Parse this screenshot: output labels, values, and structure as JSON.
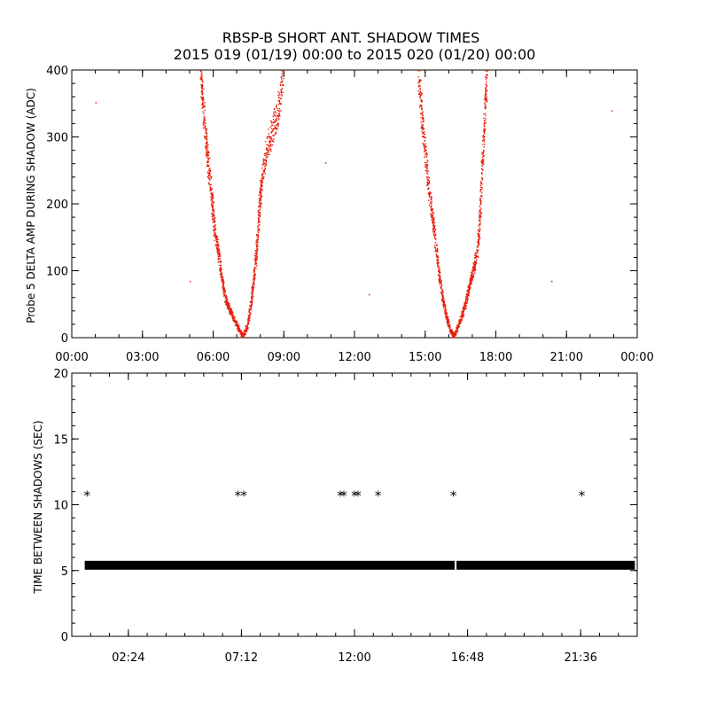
{
  "title_line1": "RBSP-B SHORT ANT. SHADOW TIMES",
  "title_line2": "2015 019 (01/19) 00:00 to 2015 020 (01/20) 00:00",
  "colors": {
    "top_points": "#e8200e",
    "bottom_points": "#000000",
    "axes": "#000000"
  },
  "chart_data": [
    {
      "type": "scatter",
      "title": "RBSP-B SHORT ANT. SHADOW TIMES",
      "ylabel": "Probe 5 DELTA AMP DURING SHADOW (ADC)",
      "xlabel": "",
      "xlim_hours": [
        0,
        24
      ],
      "ylim": [
        0,
        400
      ],
      "x_ticks": [
        "00:00",
        "03:00",
        "06:00",
        "09:00",
        "12:00",
        "15:00",
        "18:00",
        "21:00",
        "00:00"
      ],
      "y_ticks": [
        0,
        100,
        200,
        300,
        400
      ],
      "series": [
        {
          "color": "#e8200e",
          "note": "amplitude curve shape (hour, ADC)",
          "curve": [
            [
              5.45,
              400
            ],
            [
              5.55,
              350
            ],
            [
              5.7,
              290
            ],
            [
              5.8,
              250
            ],
            [
              5.95,
              200
            ],
            [
              6.05,
              160
            ],
            [
              6.2,
              130
            ],
            [
              6.35,
              90
            ],
            [
              6.5,
              60
            ],
            [
              6.65,
              45
            ],
            [
              6.85,
              30
            ],
            [
              7.05,
              15
            ],
            [
              7.25,
              2
            ],
            [
              7.45,
              20
            ],
            [
              7.6,
              55
            ],
            [
              7.75,
              100
            ],
            [
              7.85,
              140
            ],
            [
              7.95,
              200
            ],
            [
              8.05,
              240
            ],
            [
              8.25,
              280
            ],
            [
              8.5,
              310
            ],
            [
              8.75,
              340
            ],
            [
              8.95,
              400
            ],
            [
              14.7,
              400
            ],
            [
              14.85,
              330
            ],
            [
              15.0,
              270
            ],
            [
              15.15,
              220
            ],
            [
              15.3,
              180
            ],
            [
              15.45,
              130
            ],
            [
              15.6,
              90
            ],
            [
              15.75,
              55
            ],
            [
              15.9,
              30
            ],
            [
              16.05,
              12
            ],
            [
              16.2,
              2
            ],
            [
              16.4,
              20
            ],
            [
              16.6,
              40
            ],
            [
              16.75,
              60
            ],
            [
              16.9,
              85
            ],
            [
              17.05,
              105
            ],
            [
              17.2,
              130
            ],
            [
              17.3,
              180
            ],
            [
              17.4,
              250
            ],
            [
              17.5,
              330
            ],
            [
              17.6,
              400
            ]
          ],
          "isolated_points": [
            [
              1.0,
              352
            ],
            [
              5.0,
              85
            ],
            [
              10.75,
              262
            ],
            [
              12.6,
              65
            ],
            [
              20.35,
              85
            ],
            [
              22.9,
              340
            ]
          ]
        }
      ]
    },
    {
      "type": "scatter",
      "ylabel": "TIME BETWEEN SHADOWS (SEC)",
      "xlabel": "",
      "xlim_hours": [
        0,
        24
      ],
      "ylim": [
        0,
        20
      ],
      "x_ticks": [
        "02:24",
        "07:12",
        "12:00",
        "16:48",
        "21:36"
      ],
      "y_ticks": [
        0,
        5,
        10,
        15,
        20
      ],
      "marker": "*",
      "series": [
        {
          "color": "#000000",
          "baseline_value": 5.4,
          "baseline_range_hours": [
            0.55,
            23.9
          ],
          "baseline_gap_hours": [
            16.25,
            16.33
          ],
          "points_10_8": [
            0.65,
            7.05,
            7.3,
            11.4,
            11.55,
            12.0,
            12.15,
            13.0,
            16.2,
            21.65
          ]
        }
      ]
    }
  ]
}
